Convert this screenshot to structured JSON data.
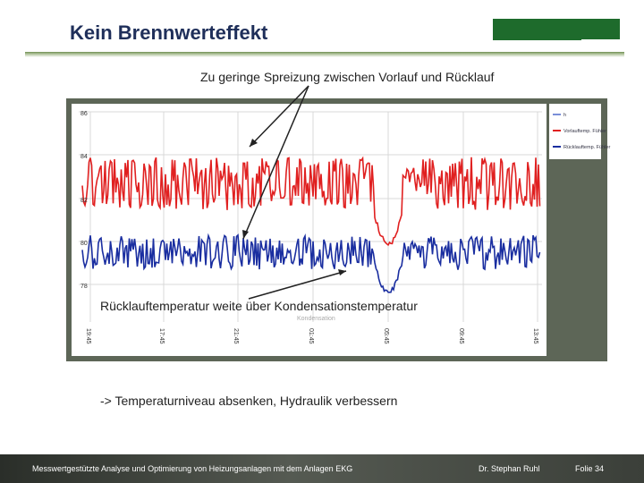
{
  "slide": {
    "title": "Kein Brennwerteffekt",
    "caption_top": "Zu geringe Spreizung zwischen Vorlauf und Rücklauf",
    "caption_mid": "Rücklauftemperatur weite über Kondensationstemperatur",
    "chart_note": "Kondensation",
    "caption_bottom": "-> Temperaturniveau absenken, Hydraulik verbessern"
  },
  "footer": {
    "left": "Messwertgestützte Analyse und Optimierung von Heizungsanlagen mit dem Anlagen EKG",
    "author": "Dr. Stephan Ruhl",
    "page": "Folie 34"
  },
  "colors": {
    "title": "#1f2f5a",
    "accent_green": "#1e6b2c",
    "series_supply": "#e02020",
    "series_return": "#1a2ea0",
    "frame": "#5d6657"
  },
  "chart_data": {
    "type": "line",
    "title": "",
    "y_tick_labels": [
      "86",
      "84",
      "82",
      "80",
      "78"
    ],
    "x_tick_labels": [
      "19:45",
      "17:45",
      "21:45",
      "01:45",
      "05:45",
      "09:45",
      "13:45"
    ],
    "legend": [
      "h",
      "Vorlauftemp. Fühler",
      "Rücklauftemp. Fühler"
    ],
    "series": [
      {
        "name": "Vorlauftemp. Fühler",
        "pattern": "oscillating",
        "level": "upper",
        "dip_segment": "after 01:45"
      },
      {
        "name": "Rücklauftemp. Fühler",
        "pattern": "oscillating",
        "level": "lower",
        "dip_segment": "after 01:45"
      }
    ]
  }
}
